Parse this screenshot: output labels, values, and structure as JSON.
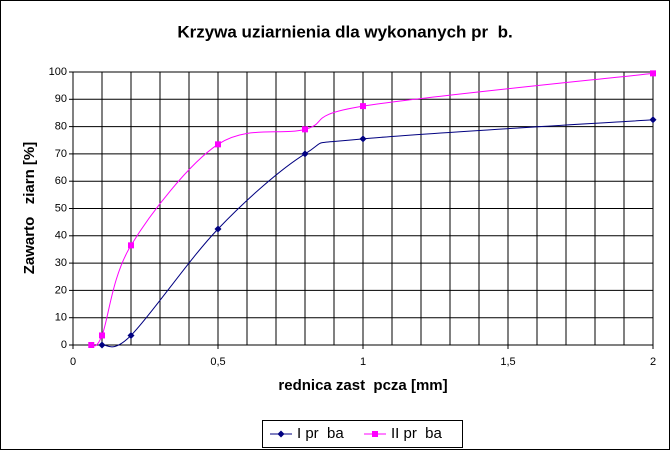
{
  "chart_data": {
    "type": "line",
    "title": "Krzywa uziarnienia dla wykonanych pr  b.",
    "x_label": "rednica zast  pcza [mm]",
    "y_label": "Zawarto   ziarn [%]",
    "xlim": [
      0,
      2
    ],
    "ylim": [
      0,
      100
    ],
    "xticks": [
      0,
      {
        "value": 0.5,
        "label": "0,5"
      },
      1,
      {
        "value": 1.5,
        "label": "1,5"
      },
      2
    ],
    "x_grid_lines": [
      0.1,
      0.2,
      0.3,
      0.4,
      0.6,
      0.7,
      0.8,
      0.9,
      1.1,
      1.2,
      1.3,
      1.4,
      1.6,
      1.7,
      1.8,
      1.9
    ],
    "yticks": [
      0,
      10,
      20,
      30,
      40,
      50,
      60,
      70,
      80,
      90,
      100
    ],
    "grid": true,
    "smooth": true,
    "legend": "bottom",
    "series": [
      {
        "name": "I pr  ba",
        "color": "#000080",
        "marker": "diamond",
        "x": [
          0.1,
          0.2,
          0.5,
          0.8,
          1,
          2
        ],
        "values": [
          0,
          3.5,
          42.5,
          70,
          75.5,
          82.5
        ]
      },
      {
        "name": "II pr  ba",
        "color": "#ff00ff",
        "marker": "square",
        "x": [
          0.063,
          0.1,
          0.2,
          0.5,
          0.8,
          1,
          2
        ],
        "values": [
          0,
          3.5,
          36.5,
          73.5,
          79,
          87.5,
          99.5
        ]
      }
    ]
  }
}
